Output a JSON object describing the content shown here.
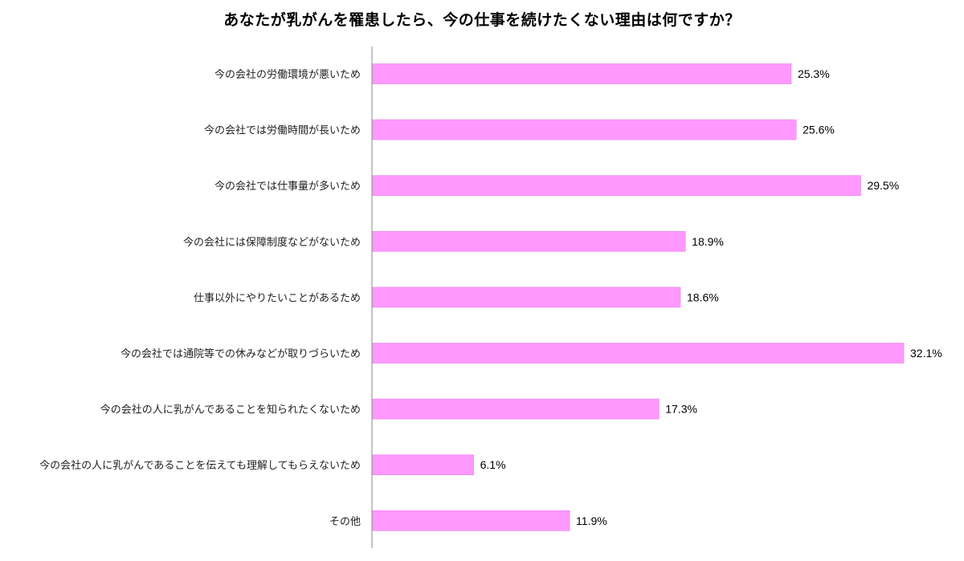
{
  "chart_data": {
    "type": "bar",
    "orientation": "horizontal",
    "title": "あなたが乳がんを罹患したら、今の仕事を続けたくない理由は何ですか？",
    "categories": [
      "今の会社の労働環境が悪いため",
      "今の会社では労働時間が長いため",
      "今の会社では仕事量が多いため",
      "今の会社には保障制度などがないため",
      "仕事以外にやりたいことがあるため",
      "今の会社では通院等での休みなどが取りづらいため",
      "今の会社の人に乳がんであることを知られたくないため",
      "今の会社の人に乳がんであることを伝えても理解してもらえないため",
      "その他"
    ],
    "values": [
      25.3,
      25.6,
      29.5,
      18.9,
      18.6,
      32.1,
      17.3,
      6.1,
      11.9
    ],
    "value_labels": [
      "25.3%",
      "25.6%",
      "29.5%",
      "18.9%",
      "18.6%",
      "32.1%",
      "17.3%",
      "6.1%",
      "11.9%"
    ],
    "xlim": [
      0,
      32.1
    ],
    "grid": false,
    "legend": "none",
    "bar_color": "#FF99FF",
    "bar_border_color": "#E880E8",
    "axis_color": "#888888"
  }
}
